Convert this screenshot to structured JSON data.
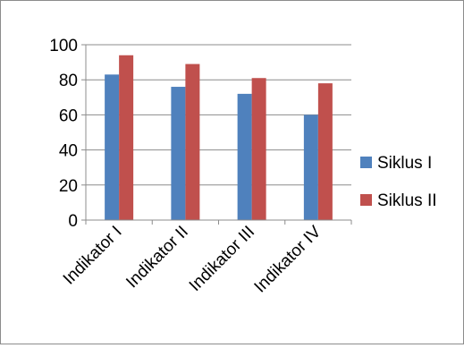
{
  "chart_data": {
    "type": "bar",
    "categories": [
      "Indikator I",
      "Indikator II",
      "Indikator III",
      "Indikator IV"
    ],
    "series": [
      {
        "name": "Siklus I",
        "color": "#4f81bd",
        "values": [
          83,
          76,
          72,
          60
        ]
      },
      {
        "name": "Siklus II",
        "color": "#c0504d",
        "values": [
          94,
          89,
          81,
          78
        ]
      }
    ],
    "yticks": [
      0,
      20,
      40,
      60,
      80,
      100
    ],
    "ylim": [
      0,
      100
    ],
    "grid": true,
    "legend_position": "right"
  }
}
